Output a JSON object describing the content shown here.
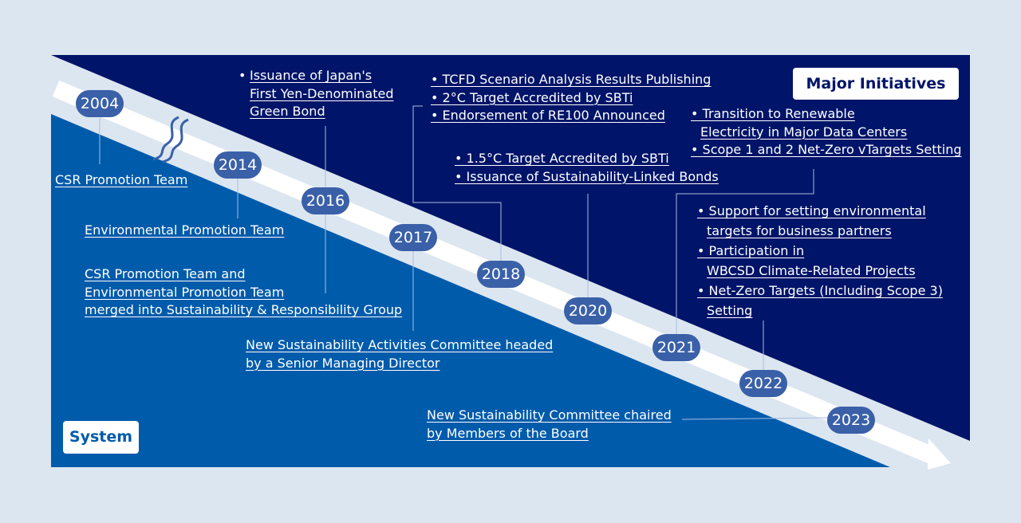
{
  "colors": {
    "background": "#dce6f0",
    "initiatives_area": "#001469",
    "system_area": "#005bab",
    "year_pill": "#3a60a8",
    "arrow": "#ffffff",
    "connector": "#a9bde0"
  },
  "labels": {
    "major_initiatives": "Major Initiatives",
    "system": "System"
  },
  "years": [
    "2004",
    "2014",
    "2016",
    "2017",
    "2018",
    "2020",
    "2021",
    "2022",
    "2023"
  ],
  "initiatives": {
    "y2016": [
      "Issuance of Japan's",
      "First Yen-Denominated",
      "Green Bond"
    ],
    "y2018": [
      "TCFD Scenario Analysis Results Publishing",
      "2°C Target Accredited by SBTi",
      "Endorsement of RE100 Announced"
    ],
    "y2020": [
      "1.5°C Target Accredited by SBTi",
      "Issuance of Sustainability-Linked Bonds"
    ],
    "y2021": [
      "Transition to Renewable",
      "Electricity in Major Data Centers",
      "Scope 1 and 2 Net-Zero vTargets Setting"
    ],
    "y2022": [
      "Support for setting environmental",
      "targets for business partners",
      "Participation in ",
      "WBCSD Climate-Related Projects",
      "Net-Zero Targets (Including Scope 3)",
      "Setting"
    ]
  },
  "system": {
    "y2004": "CSR Promotion Team",
    "y2014": "Environmental Promotion Team",
    "y2016": [
      "CSR Promotion Team and",
      "Environmental Promotion Team",
      "merged into Sustainability & Responsibility Group"
    ],
    "y2017": [
      "New Sustainability Activities Committee headed",
      "by a Senior Managing Director"
    ],
    "y2023": [
      "New Sustainability Committee chaired",
      "by Members of the Board"
    ]
  },
  "bullet": "•"
}
